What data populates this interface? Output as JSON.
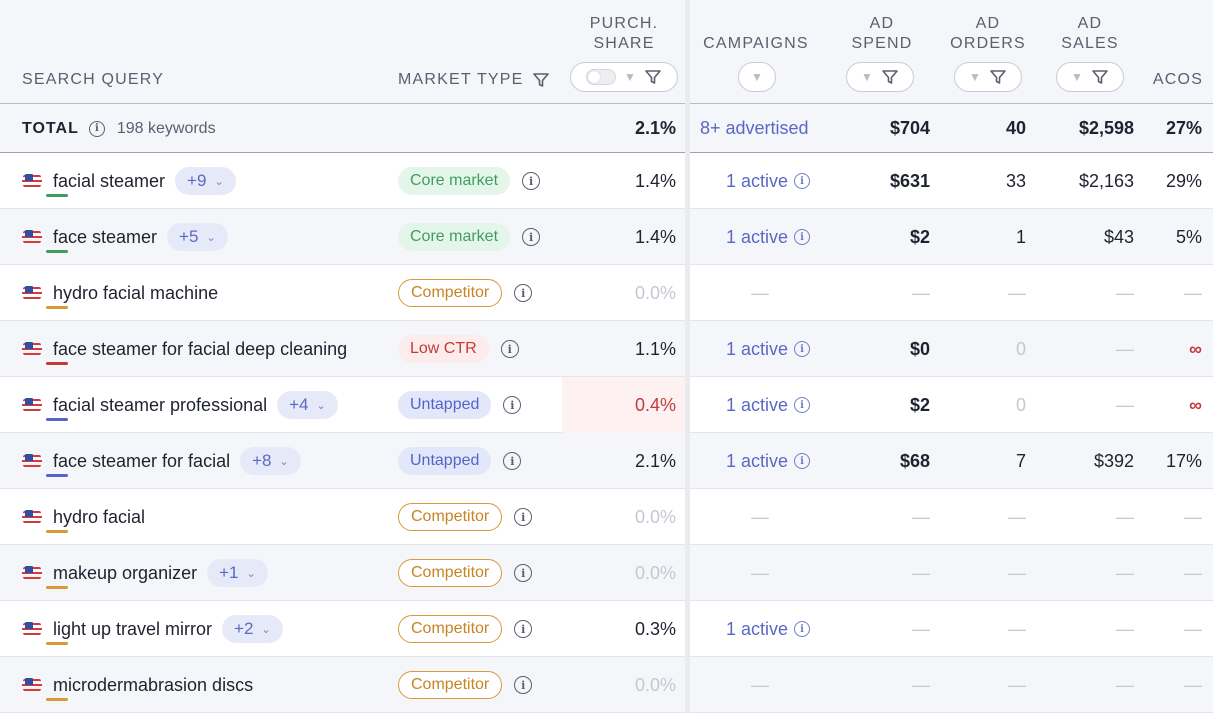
{
  "columns": {
    "search_query": "SEARCH QUERY",
    "market_type": "MARKET TYPE",
    "purch_share_1": "PURCH.",
    "purch_share_2": "SHARE",
    "campaigns": "CAMPAIGNS",
    "ad_spend_1": "AD",
    "ad_spend_2": "SPEND",
    "ad_orders_1": "AD",
    "ad_orders_2": "ORDERS",
    "ad_sales_1": "AD",
    "ad_sales_2": "SALES",
    "acos": "ACOS"
  },
  "total": {
    "label": "TOTAL",
    "info_icon": "info-icon",
    "keywords": "198 keywords",
    "purch_share": "2.1%",
    "campaigns": "8+ advertised",
    "ad_spend": "$704",
    "ad_orders": "40",
    "ad_sales": "$2,598",
    "acos": "27%"
  },
  "colors": {
    "core": "#3f9e5f",
    "competitor": "#c78425",
    "low_ctr": "#c23b3b",
    "untapped": "#5564c8",
    "link": "#5a68c5"
  },
  "rows": [
    {
      "query": "facial steamer",
      "plus": "+9",
      "market": "Core market",
      "market_kind": "core",
      "purch_share": "1.4%",
      "campaigns": "1 active",
      "ad_spend": "$631",
      "ad_orders": "33",
      "ad_sales": "$2,163",
      "acos": "29%"
    },
    {
      "query": "face steamer",
      "plus": "+5",
      "market": "Core market",
      "market_kind": "core",
      "purch_share": "1.4%",
      "campaigns": "1 active",
      "ad_spend": "$2",
      "ad_orders": "1",
      "ad_sales": "$43",
      "acos": "5%"
    },
    {
      "query": "hydro facial machine",
      "plus": "",
      "market": "Competitor",
      "market_kind": "comp",
      "purch_share": "0.0%",
      "campaigns": "—",
      "ad_spend": "—",
      "ad_orders": "—",
      "ad_sales": "—",
      "acos": "—"
    },
    {
      "query": "face steamer for facial deep cleaning",
      "plus": "",
      "market": "Low CTR",
      "market_kind": "low",
      "purch_share": "1.1%",
      "campaigns": "1 active",
      "ad_spend": "$0",
      "ad_orders": "0",
      "ad_sales": "—",
      "acos": "∞"
    },
    {
      "query": "facial steamer professional",
      "plus": "+4",
      "market": "Untapped",
      "market_kind": "untap",
      "purch_share": "0.4%",
      "campaigns": "1 active",
      "ad_spend": "$2",
      "ad_orders": "0",
      "ad_sales": "—",
      "acos": "∞"
    },
    {
      "query": "face steamer for facial",
      "plus": "+8",
      "market": "Untapped",
      "market_kind": "untap",
      "purch_share": "2.1%",
      "campaigns": "1 active",
      "ad_spend": "$68",
      "ad_orders": "7",
      "ad_sales": "$392",
      "acos": "17%"
    },
    {
      "query": "hydro facial",
      "plus": "",
      "market": "Competitor",
      "market_kind": "comp",
      "purch_share": "0.0%",
      "campaigns": "—",
      "ad_spend": "—",
      "ad_orders": "—",
      "ad_sales": "—",
      "acos": "—"
    },
    {
      "query": "makeup organizer",
      "plus": "+1",
      "market": "Competitor",
      "market_kind": "comp",
      "purch_share": "0.0%",
      "campaigns": "—",
      "ad_spend": "—",
      "ad_orders": "—",
      "ad_sales": "—",
      "acos": "—"
    },
    {
      "query": "light up travel mirror",
      "plus": "+2",
      "market": "Competitor",
      "market_kind": "comp",
      "purch_share": "0.3%",
      "campaigns": "1 active",
      "ad_spend": "—",
      "ad_orders": "—",
      "ad_sales": "—",
      "acos": "—"
    },
    {
      "query": "microdermabrasion discs",
      "plus": "",
      "market": "Competitor",
      "market_kind": "comp",
      "purch_share": "0.0%",
      "campaigns": "—",
      "ad_spend": "—",
      "ad_orders": "—",
      "ad_sales": "—",
      "acos": "—"
    }
  ]
}
